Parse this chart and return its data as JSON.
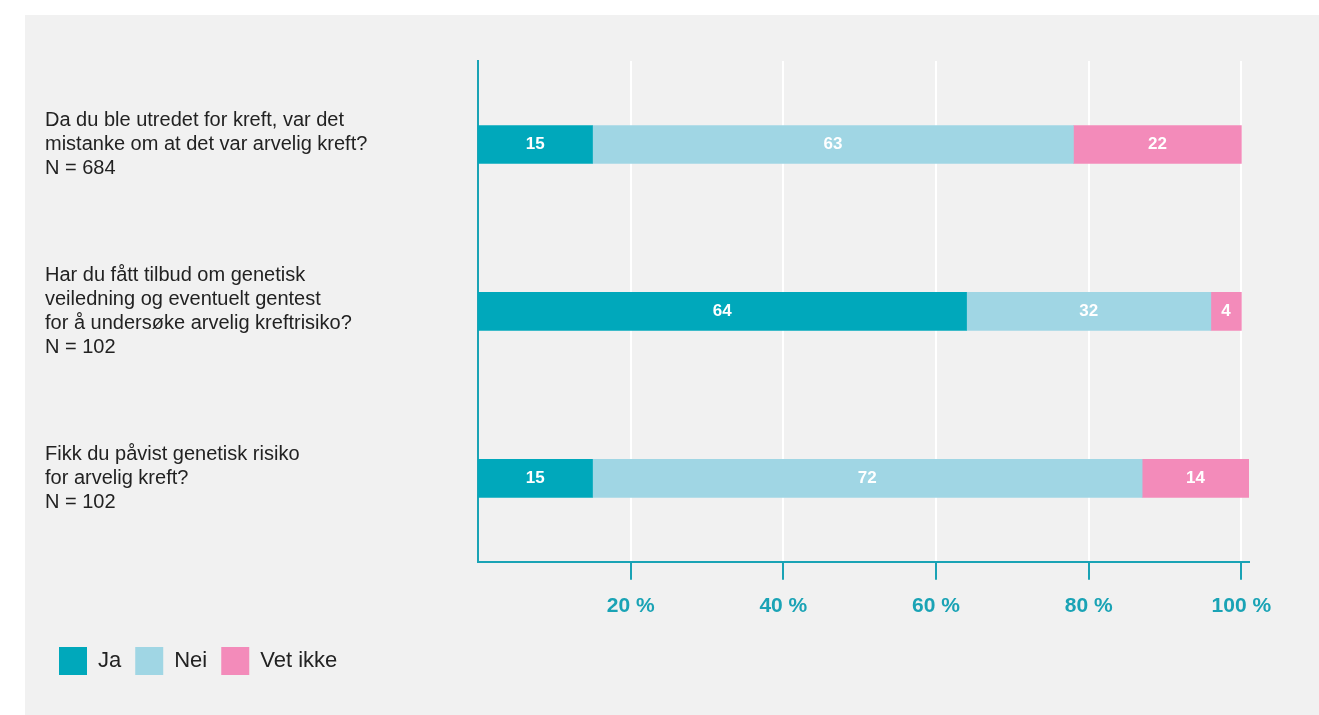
{
  "chart_data": {
    "type": "bar",
    "orientation": "horizontal",
    "stacked": true,
    "categories": [
      "Da du ble utredet for kreft, var det\nmistanke om at det var arvelig kreft?\nN = 684",
      "Har du fått tilbud om genetisk\nveiledning og eventuelt gentest\nfor å undersøke arvelig kreftrisiko?\nN = 102",
      "Fikk du påvist genetisk risiko\nfor arvelig kreft?\nN = 102"
    ],
    "series": [
      {
        "name": "Ja",
        "color": "#00a8bb",
        "values": [
          15,
          64,
          15
        ]
      },
      {
        "name": "Nei",
        "color": "#a0d6e4",
        "values": [
          63,
          32,
          72
        ]
      },
      {
        "name": "Vet ikke",
        "color": "#f38bba",
        "values": [
          22,
          4,
          14
        ]
      }
    ],
    "xlim": [
      0,
      101
    ],
    "xticks": [
      {
        "value": 20,
        "label": "20 %"
      },
      {
        "value": 40,
        "label": "40 %"
      },
      {
        "value": 60,
        "label": "60 %"
      },
      {
        "value": 80,
        "label": "80 %"
      },
      {
        "value": 100,
        "label": "100 %"
      }
    ],
    "data_labels": true,
    "grid": "x",
    "legend": "bottom left"
  }
}
